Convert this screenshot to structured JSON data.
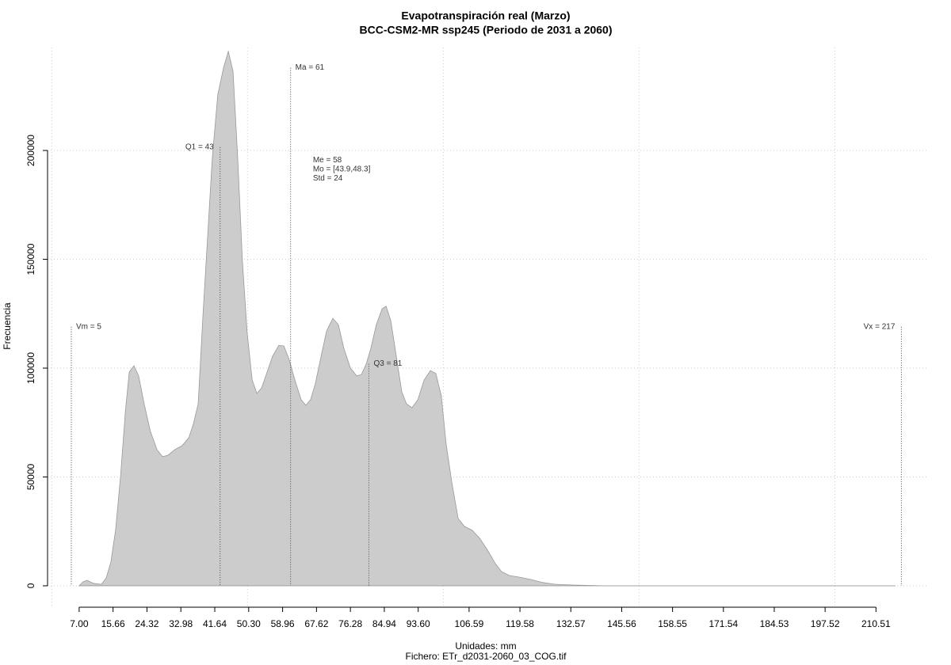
{
  "chart_data": {
    "type": "area",
    "title": "Evapotranspiración real (Marzo)",
    "subtitle": "BCC-CSM2-MR ssp245 (Periodo de 2031 a 2060)",
    "xlabel": "Unidades: mm",
    "ylabel": "Frecuencia",
    "caption": "Fichero: ETr_d2031-2060_03_COG.tif",
    "color": "#cccccc",
    "line_color": "#999999",
    "grid": true,
    "xlim": [
      -1.07,
      223.6
    ],
    "ylim": [
      -10200,
      247300
    ],
    "xgrid": [
      0,
      50,
      100,
      150,
      200
    ],
    "xticks": [
      {
        "value": 7.0,
        "label": "7.00"
      },
      15.66,
      24.32,
      32.98,
      41.64,
      {
        "value": 50.3,
        "label": "50.30"
      },
      58.96,
      67.62,
      76.28,
      84.94,
      {
        "value": 93.6,
        "label": "93.60"
      },
      106.59,
      119.58,
      132.57,
      145.56,
      158.55,
      171.54,
      184.53,
      197.52,
      210.51
    ],
    "yticks": [
      0,
      50000,
      100000,
      150000,
      200000
    ],
    "x": [
      7.0,
      8.0,
      9.0,
      10.7,
      12.7,
      13.9,
      15.1,
      16.3,
      17.6,
      18.8,
      19.8,
      21.0,
      22.2,
      23.6,
      25.2,
      26.9,
      28.3,
      29.7,
      31.4,
      33.3,
      35.0,
      36.2,
      37.4,
      38.6,
      39.8,
      41.0,
      42.4,
      43.9,
      45.1,
      46.3,
      47.5,
      48.7,
      49.9,
      51.2,
      52.4,
      53.6,
      55.0,
      56.4,
      58.0,
      59.3,
      60.7,
      62.1,
      63.7,
      64.9,
      66.1,
      67.3,
      68.8,
      70.2,
      71.8,
      73.2,
      74.6,
      76.3,
      77.9,
      79.1,
      80.3,
      81.5,
      82.9,
      84.4,
      85.4,
      86.6,
      88.0,
      89.4,
      90.6,
      92.0,
      93.5,
      95.1,
      96.7,
      98.1,
      99.5,
      100.7,
      102.2,
      103.8,
      105.4,
      107.4,
      109.3,
      111.3,
      113.3,
      114.9,
      116.9,
      119.4,
      122.4,
      125.4,
      128.5,
      132.5,
      140.6,
      215.5
    ],
    "values": [
      0,
      1800,
      2500,
      1100,
      700,
      3600,
      10900,
      25500,
      50900,
      80000,
      98200,
      101100,
      96400,
      83600,
      70900,
      62500,
      59300,
      60000,
      62500,
      64400,
      68000,
      74500,
      83600,
      123600,
      160000,
      196400,
      225500,
      238200,
      245500,
      236400,
      196400,
      149100,
      116400,
      94500,
      88400,
      90900,
      98200,
      105500,
      110500,
      110200,
      103600,
      94500,
      85500,
      82900,
      85500,
      92700,
      105500,
      117100,
      122900,
      120000,
      109100,
      100000,
      96400,
      97100,
      101800,
      109100,
      120000,
      127300,
      128400,
      121800,
      105500,
      89100,
      83600,
      81800,
      85500,
      94500,
      98900,
      97500,
      87300,
      65500,
      47300,
      30900,
      27300,
      25500,
      21800,
      16400,
      10200,
      6500,
      4700,
      4000,
      2900,
      1500,
      700,
      400,
      0,
      0
    ],
    "annotations": [
      {
        "label": "Vm = 5",
        "x": 5,
        "y": 119000,
        "side": "right"
      },
      {
        "label": "Q1 = 43",
        "x": 43,
        "y": 201500,
        "side": "left"
      },
      {
        "label": "Ma = 61",
        "x": 61,
        "y": 238000,
        "side": "right"
      },
      {
        "label": "Q3 = 81",
        "x": 81,
        "y": 102000,
        "side": "right"
      },
      {
        "label": "Vx = 217",
        "x": 217,
        "y": 119000,
        "side": "left"
      }
    ],
    "stats": {
      "x": 66.7,
      "y": 195600,
      "lines": [
        "Me = 58",
        "Mo = [43.9,48.3]",
        "Std = 24"
      ]
    }
  }
}
